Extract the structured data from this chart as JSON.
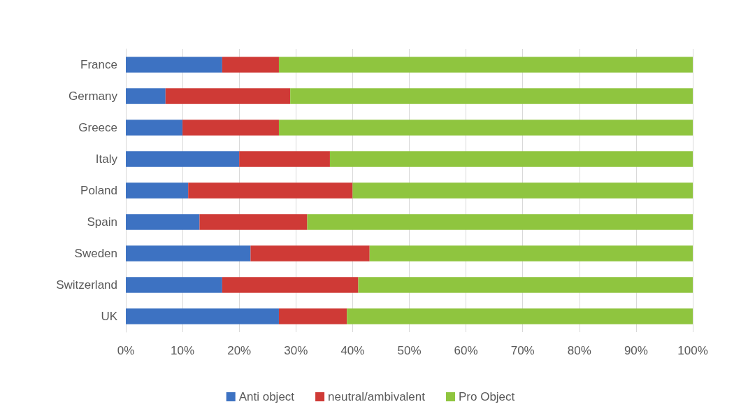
{
  "chart_data": {
    "type": "bar",
    "orientation": "horizontal",
    "stacked": true,
    "categories": [
      "France",
      "Germany",
      "Greece",
      "Italy",
      "Poland",
      "Spain",
      "Sweden",
      "Switzerland",
      "UK"
    ],
    "series": [
      {
        "name": "Anti object",
        "color": "#3d72c2",
        "values": [
          17,
          7,
          10,
          20,
          11,
          13,
          22,
          17,
          27
        ]
      },
      {
        "name": "neutral/ambivalent",
        "color": "#cf3a36",
        "values": [
          10,
          22,
          17,
          16,
          29,
          19,
          21,
          24,
          12
        ]
      },
      {
        "name": "Pro Object",
        "color": "#8fc53f",
        "values": [
          73,
          71,
          73,
          64,
          60,
          68,
          57,
          59,
          61
        ]
      }
    ],
    "xlim": [
      0,
      100
    ],
    "xticks": [
      {
        "value": 0,
        "label": "0%"
      },
      {
        "value": 10,
        "label": "10%"
      },
      {
        "value": 20,
        "label": "20%"
      },
      {
        "value": 30,
        "label": "30%"
      },
      {
        "value": 40,
        "label": "40%"
      },
      {
        "value": 50,
        "label": "50%"
      },
      {
        "value": 60,
        "label": "60%"
      },
      {
        "value": 70,
        "label": "70%"
      },
      {
        "value": 80,
        "label": "80%"
      },
      {
        "value": 90,
        "label": "90%"
      },
      {
        "value": 100,
        "label": "100%"
      }
    ],
    "grid": "x",
    "legend": "bottom"
  }
}
